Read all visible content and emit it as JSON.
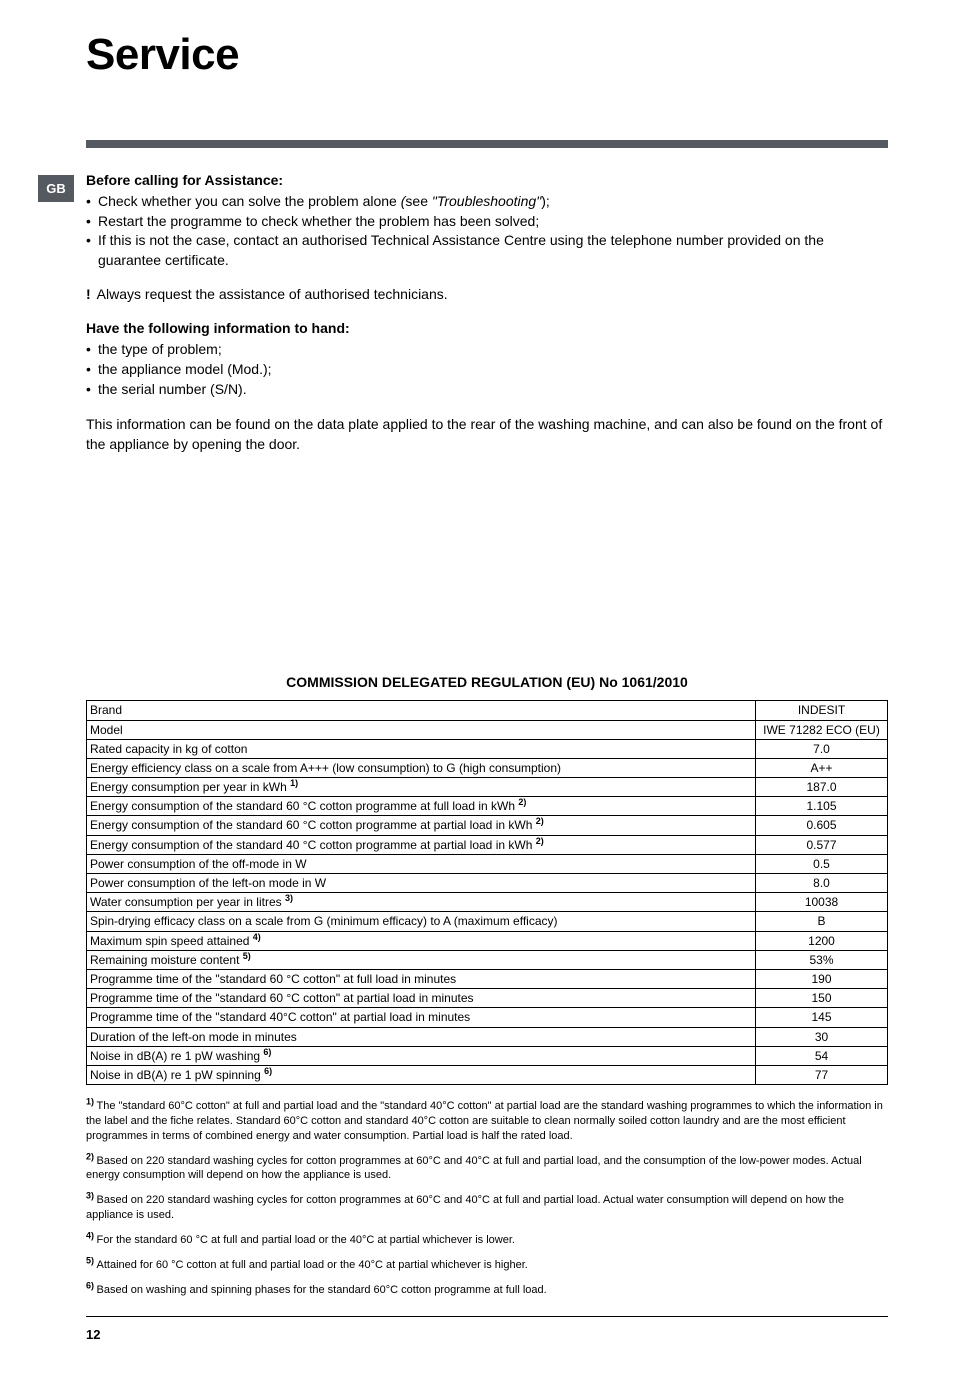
{
  "tab": "GB",
  "title": "Service",
  "assist_head": "Before calling for Assistance:",
  "assist_items": {
    "a": "Check whether you can solve the problem alone (see \"Troubleshooting\");",
    "b": "Restart the programme to check whether the problem has been solved;",
    "c": "If this is not the case, contact an authorised Technical Assistance Centre using the telephone number provided on the guarantee certificate."
  },
  "warning": "Always request the assistance of authorised technicians.",
  "info_head": "Have the following information to hand:",
  "info_items": {
    "a": "the type of problem;",
    "b": "the appliance model (Mod.);",
    "c": "the serial number (S/N)."
  },
  "info_para": "This information can be found on the data plate applied to the rear of the washing machine, and can also be found on the front of the appliance by opening the door.",
  "reg_title": "COMMISSION DELEGATED REGULATION (EU) No 1061/2010",
  "rows": {
    "r1": {
      "l": "Brand",
      "v": "INDESIT"
    },
    "r2": {
      "l": "Model",
      "v": "IWE 71282 ECO (EU)"
    },
    "r3": {
      "l": "Rated capacity in kg of cotton",
      "v": "7.0"
    },
    "r4": {
      "l": "Energy efficiency class on a scale from A+++ (low consumption) to G (high consumption)",
      "v": "A++"
    },
    "r5": {
      "l": "Energy consumption per year in kWh",
      "sup": "1)",
      "v": "187.0"
    },
    "r6": {
      "l": "Energy consumption of the standard 60 °C cotton programme at full load in kWh",
      "sup": "2)",
      "v": "1.105"
    },
    "r7": {
      "l": "Energy consumption of the standard 60 °C cotton programme at partial load in kWh",
      "sup": "2)",
      "v": "0.605"
    },
    "r8": {
      "l": "Energy consumption of the standard 40 °C cotton programme at partial load in kWh",
      "sup": "2)",
      "v": "0.577"
    },
    "r9": {
      "l": "Power consumption of the off-mode in W",
      "v": "0.5"
    },
    "r10": {
      "l": "Power consumption of the left-on mode in W",
      "v": "8.0"
    },
    "r11": {
      "l": "Water consumption per year in litres",
      "sup": "3)",
      "v": "10038"
    },
    "r12": {
      "l": "Spin-drying efficacy class on a scale from G (minimum efficacy) to A (maximum efficacy)",
      "v": "B"
    },
    "r13": {
      "l": "Maximum spin speed attained",
      "sup": "4)",
      "v": "1200"
    },
    "r14": {
      "l": "Remaining moisture content",
      "sup": "5)",
      "v": "53%"
    },
    "r15": {
      "l": "Programme time of the \"standard 60 °C cotton\" at full load in minutes",
      "v": "190"
    },
    "r16": {
      "l": "Programme time of the \"standard 60 °C cotton\" at partial load in minutes",
      "v": "150"
    },
    "r17": {
      "l": "Programme time of the \"standard 40°C cotton\" at partial load in minutes",
      "v": "145"
    },
    "r18": {
      "l": "Duration of the left-on mode in minutes",
      "v": "30"
    },
    "r19": {
      "l": "Noise in dB(A) re 1 pW washing",
      "sup": "6)",
      "v": "54"
    },
    "r20": {
      "l": "Noise in dB(A) re 1 pW spinning",
      "sup": "6)",
      "v": "77"
    }
  },
  "footnotes": {
    "f1": {
      "sup": "1)",
      "t": "The \"standard 60°C cotton\" at full and partial load and the \"standard 40°C cotton\" at partial load are the standard washing programmes to which the information in the label and the fiche relates. Standard 60°C cotton and standard 40°C cotton are suitable to clean normally soiled cotton laundry and are the most efficient programmes in terms of combined energy and water consumption. Partial load is half the rated load."
    },
    "f2": {
      "sup": "2)",
      "t": "Based on 220 standard washing cycles for cotton programmes at 60°C and 40°C at full and partial load, and the consumption of the low-power modes. Actual energy consumption will depend on how the appliance is used."
    },
    "f3": {
      "sup": "3)",
      "t": "Based on 220 standard washing cycles for cotton programmes at 60°C and 40°C at full and partial load. Actual water consumption will depend on how the appliance is used."
    },
    "f4": {
      "sup": "4)",
      "t": "For the standard 60 °C at full and partial load or the 40°C at partial whichever is lower."
    },
    "f5": {
      "sup": "5)",
      "t": "Attained for 60 °C cotton at full and partial load or the 40°C at partial whichever is higher."
    },
    "f6": {
      "sup": "6)",
      "t": "Based on washing and spinning phases for the standard 60°C cotton programme at full load."
    }
  },
  "page_num": "12"
}
